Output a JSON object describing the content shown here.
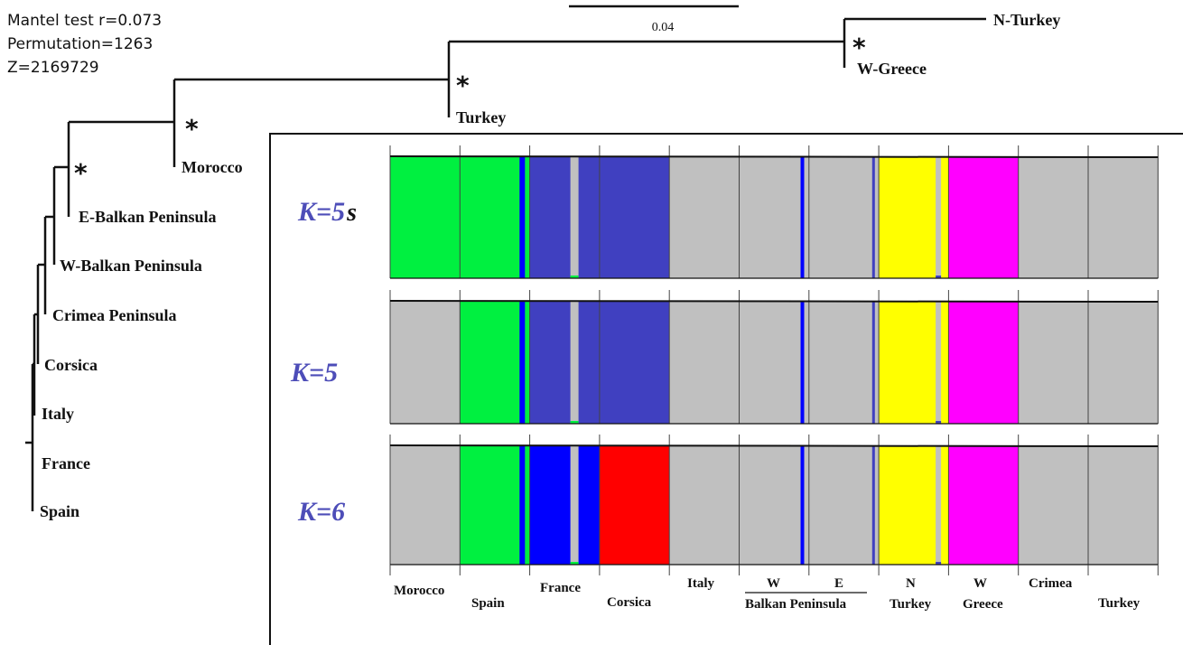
{
  "stats": {
    "line1": "Mantel test r=0.073",
    "line2": "Permutation=1263",
    "line3": "Z=2169729"
  },
  "scale_bar": {
    "label": "0.04"
  },
  "tree": {
    "taxa": [
      "N-Turkey",
      "W-Greece",
      "Turkey",
      "Morocco",
      "E-Balkan Peninsula",
      "W-Balkan Peninsula",
      "Crimea Peninsula",
      "Corsica",
      "Italy",
      "France",
      "Spain"
    ],
    "support_marker": "*"
  },
  "panels": [
    {
      "label_k": "K=5",
      "suffix": "s"
    },
    {
      "label_k": "K=5",
      "suffix": ""
    },
    {
      "label_k": "K=6",
      "suffix": ""
    }
  ],
  "colors": {
    "grey": "#c0c0c0",
    "green": "#00f040",
    "blue_dark": "#4040c0",
    "blue_bright": "#0000ff",
    "red": "#ff0000",
    "yellow": "#ffff00",
    "magenta": "#ff00ff",
    "k_label": "#4d4db8"
  },
  "populations": [
    {
      "label": "Morocco"
    },
    {
      "label": "Spain"
    },
    {
      "label": "France"
    },
    {
      "label": "Corsica"
    },
    {
      "label": "Italy"
    },
    {
      "label": "W"
    },
    {
      "label": "E"
    },
    {
      "label": "N"
    },
    {
      "label": "W"
    },
    {
      "label": "Crimea"
    },
    {
      "label": "Turkey"
    }
  ],
  "group_labels": {
    "balkan": "Balkan Peninsula",
    "n_turkey": "Turkey",
    "w_greece": "Greece"
  },
  "structure_colors": {
    "K5s": [
      "green",
      "green",
      "blue_dark",
      "blue_dark",
      "grey",
      "grey",
      "grey",
      "yellow",
      "magenta",
      "grey",
      "grey"
    ],
    "K5": [
      "grey",
      "green",
      "blue_dark",
      "blue_dark",
      "grey",
      "grey",
      "grey",
      "yellow",
      "magenta",
      "grey",
      "grey"
    ],
    "K6": [
      "grey",
      "green",
      "blue_bright",
      "red",
      "grey",
      "grey",
      "grey",
      "yellow",
      "magenta",
      "grey",
      "grey"
    ]
  }
}
